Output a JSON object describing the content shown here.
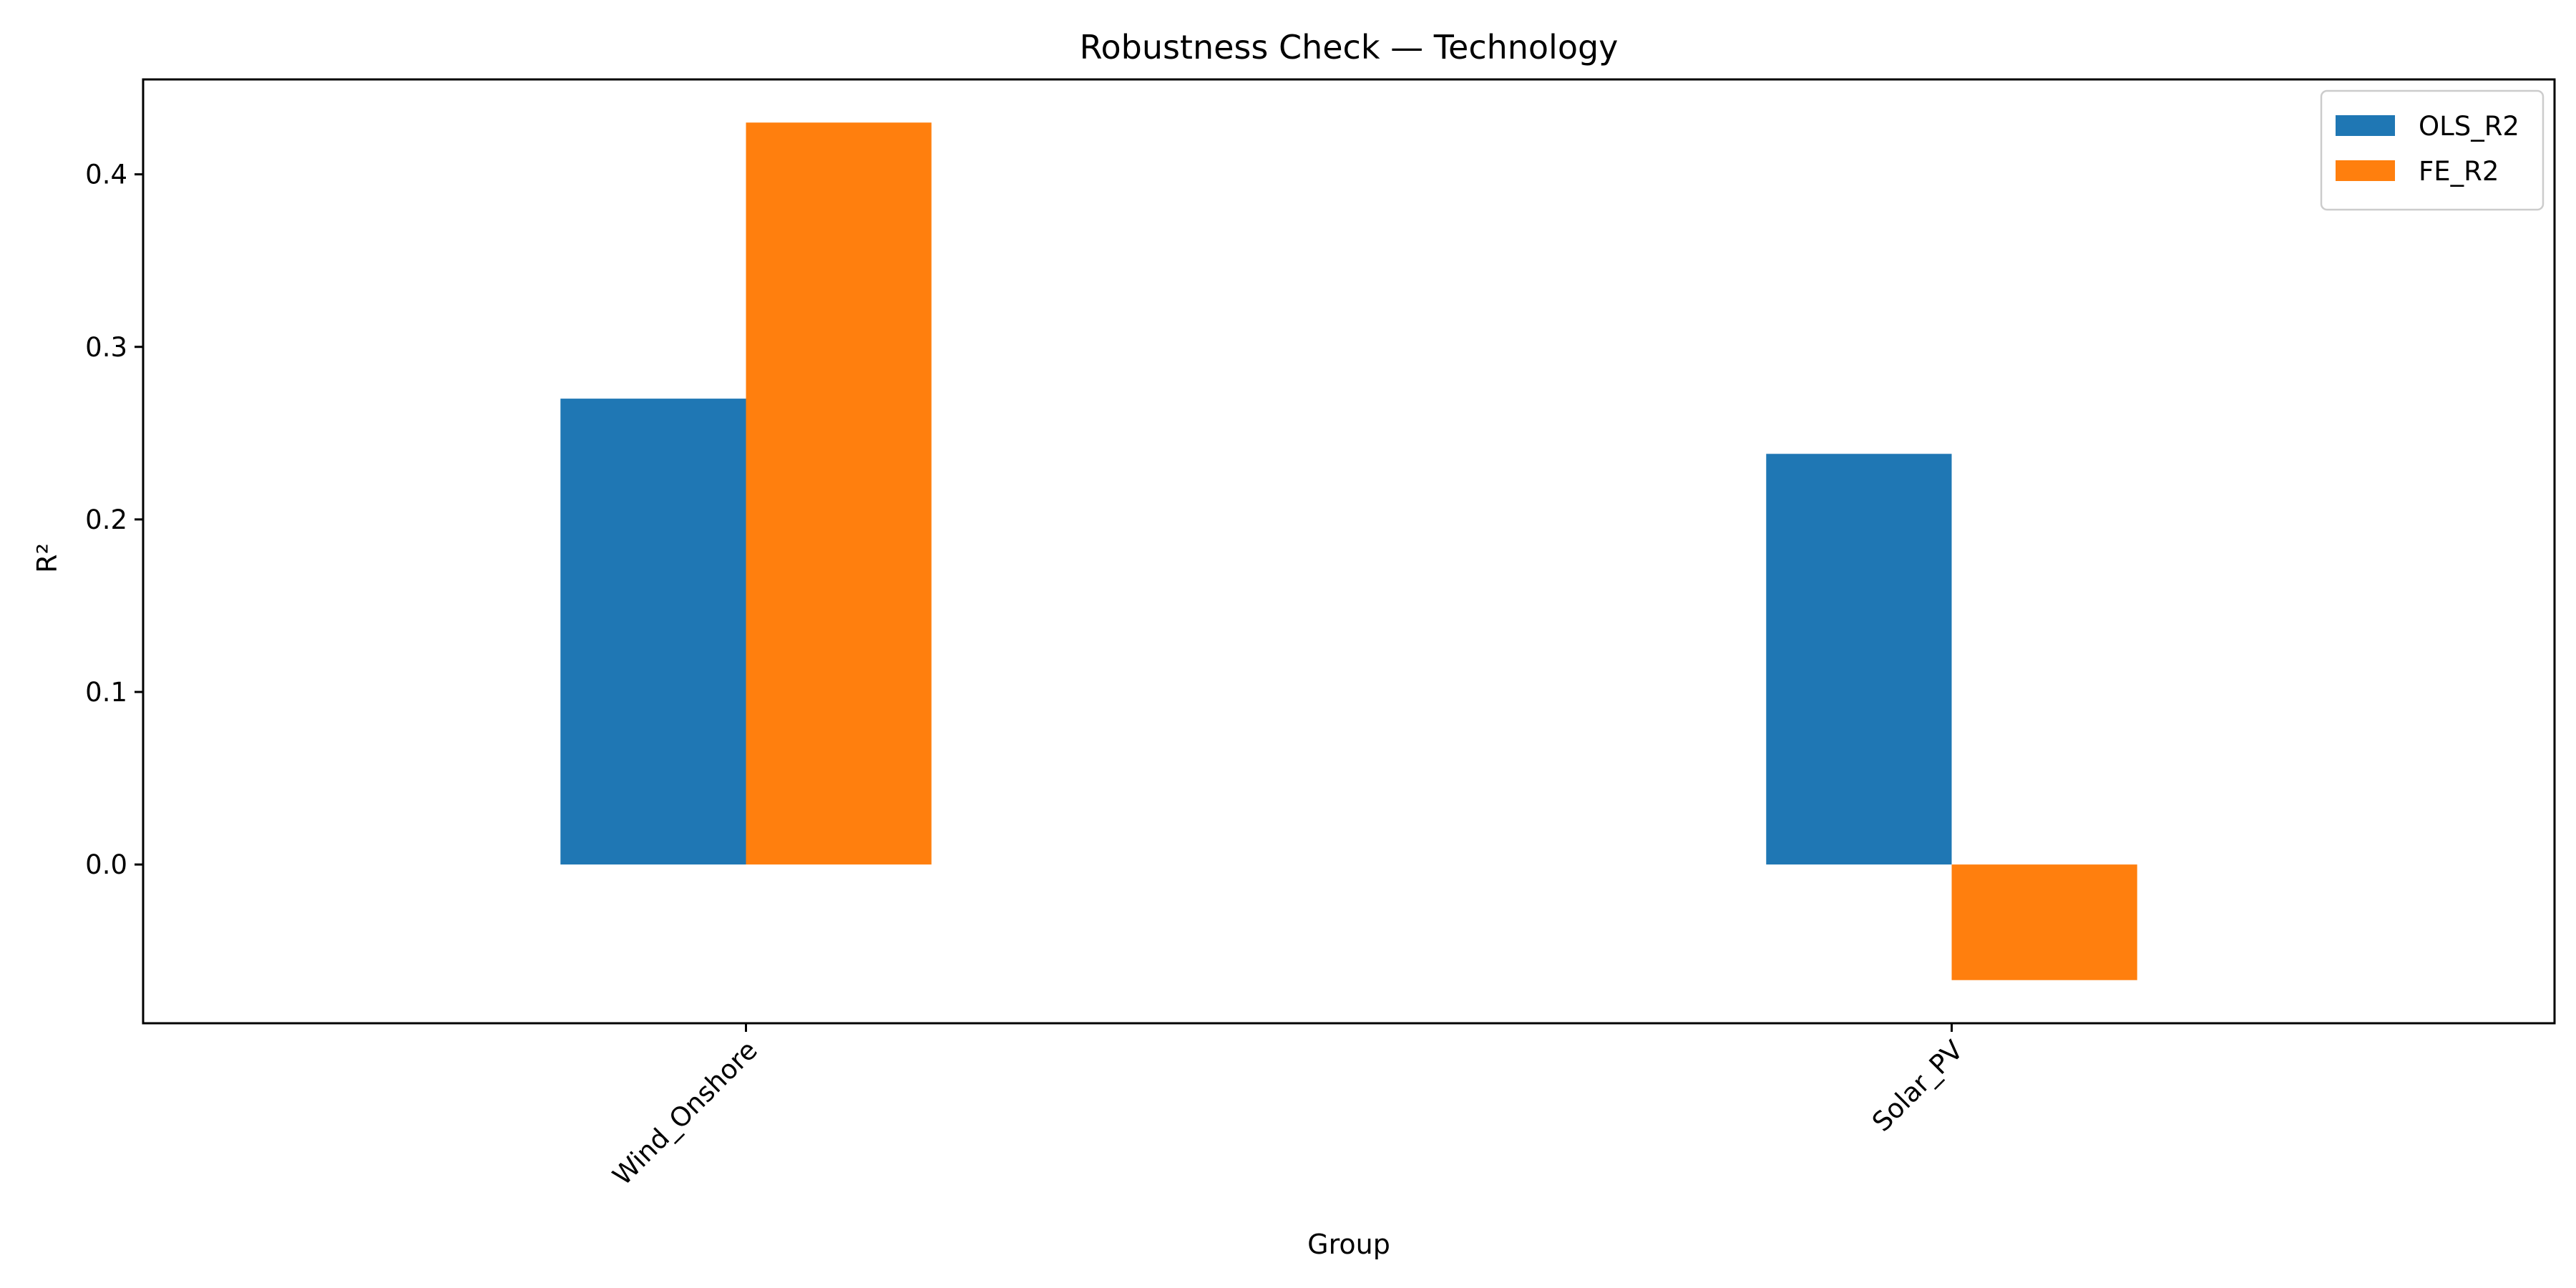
{
  "chart_data": {
    "type": "bar",
    "title": "Robustness Check — Technology",
    "xlabel": "Group",
    "ylabel": "R²",
    "categories": [
      "Wind_Onshore",
      "Solar_PV"
    ],
    "series": [
      {
        "name": "OLS_R2",
        "values": [
          0.27,
          0.238
        ],
        "color": "#1f77b4"
      },
      {
        "name": "FE_R2",
        "values": [
          0.43,
          -0.067
        ],
        "color": "#ff7f0e"
      }
    ],
    "ylim": [
      -0.092,
      0.455
    ],
    "yticks": [
      "0.0",
      "0.1",
      "0.2",
      "0.3",
      "0.4"
    ],
    "grid": false,
    "legend_position": "top-right"
  }
}
